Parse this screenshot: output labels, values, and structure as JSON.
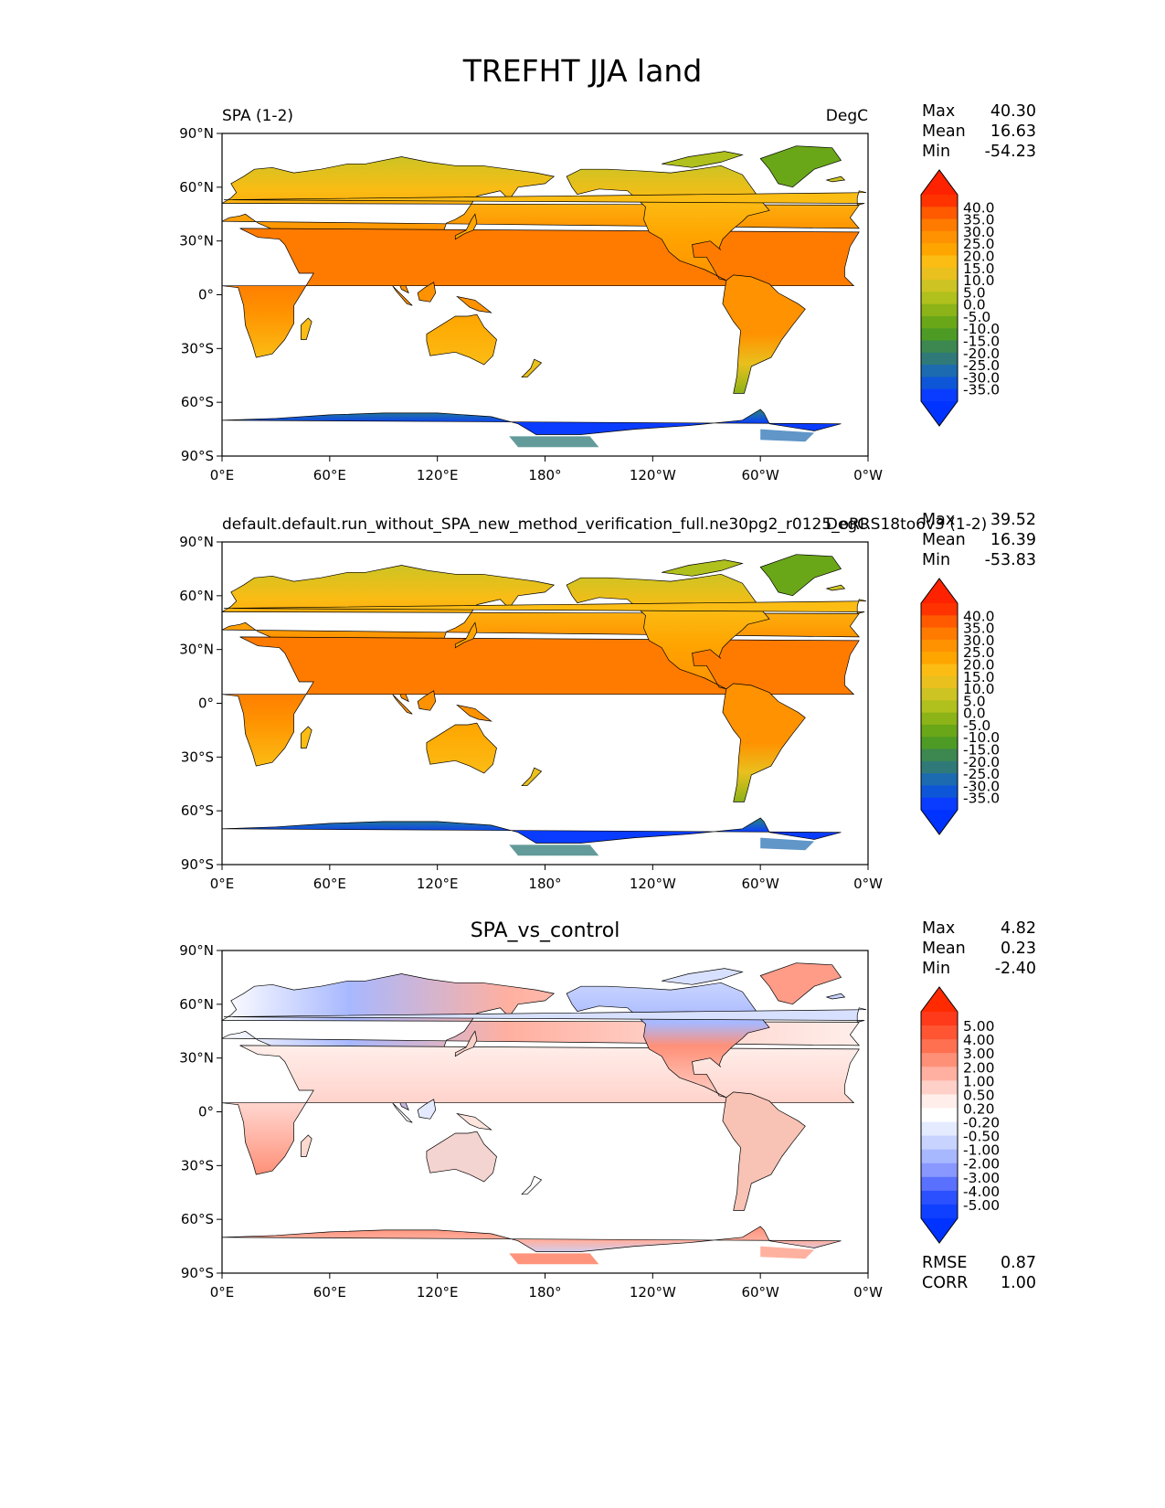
{
  "figure": {
    "title": "TREFHT JJA land"
  },
  "panels": [
    {
      "id": "test",
      "left_title": "SPA (1-2)",
      "center_title": "",
      "right_title": "DegC",
      "stats": [
        {
          "label": "Max",
          "value": "40.30"
        },
        {
          "label": "Mean",
          "value": "16.63"
        },
        {
          "label": "Min",
          "value": "-54.23"
        }
      ],
      "colorbar": {
        "labels": [
          "40.0",
          "35.0",
          "30.0",
          "25.0",
          "20.0",
          "15.0",
          "10.0",
          "5.0",
          "0.0",
          "-5.0",
          "-10.0",
          "-15.0",
          "-20.0",
          "-25.0",
          "-30.0",
          "-35.0"
        ],
        "colors": [
          "#ff3300",
          "#ff5a00",
          "#ff7b00",
          "#ff9200",
          "#ffa500",
          "#fbbc14",
          "#e9c01e",
          "#cdc424",
          "#b0c01c",
          "#8cb318",
          "#6aa718",
          "#4d9b24",
          "#3c8850",
          "#2f7a78",
          "#1c6ab0",
          "#0d56d8",
          "#0a3cff"
        ],
        "ext_top": "#ff2200",
        "ext_bottom": "#0033ff"
      }
    },
    {
      "id": "reference",
      "left_title": "default.default.run_without_SPA_new_method_verification_full.ne30pg2_r0125_oRRS18to6v3 (1-2)",
      "center_title": "",
      "right_title": "DegC",
      "stats": [
        {
          "label": "Max",
          "value": "39.52"
        },
        {
          "label": "Mean",
          "value": "16.39"
        },
        {
          "label": "Min",
          "value": "-53.83"
        }
      ],
      "colorbar": {
        "labels": [
          "40.0",
          "35.0",
          "30.0",
          "25.0",
          "20.0",
          "15.0",
          "10.0",
          "5.0",
          "0.0",
          "-5.0",
          "-10.0",
          "-15.0",
          "-20.0",
          "-25.0",
          "-30.0",
          "-35.0"
        ],
        "colors": [
          "#ff3300",
          "#ff5a00",
          "#ff7b00",
          "#ff9200",
          "#ffa500",
          "#fbbc14",
          "#e9c01e",
          "#cdc424",
          "#b0c01c",
          "#8cb318",
          "#6aa718",
          "#4d9b24",
          "#3c8850",
          "#2f7a78",
          "#1c6ab0",
          "#0d56d8",
          "#0a3cff"
        ],
        "ext_top": "#ff2200",
        "ext_bottom": "#0033ff"
      }
    },
    {
      "id": "diff",
      "left_title": "",
      "center_title": "SPA_vs_control",
      "right_title": "",
      "stats": [
        {
          "label": "Max",
          "value": "4.82"
        },
        {
          "label": "Mean",
          "value": "0.23"
        },
        {
          "label": "Min",
          "value": "-2.40"
        }
      ],
      "bottom_stats": [
        {
          "label": "RMSE",
          "value": "0.87"
        },
        {
          "label": "CORR",
          "value": "1.00"
        }
      ],
      "colorbar": {
        "labels": [
          "5.00",
          "4.00",
          "3.00",
          "2.00",
          "1.00",
          "0.50",
          "0.20",
          "-0.20",
          "-0.50",
          "-1.00",
          "-2.00",
          "-3.00",
          "-4.00",
          "-5.00"
        ],
        "colors": [
          "#ff3a1a",
          "#ff5533",
          "#ff7050",
          "#ff9078",
          "#ffb0a0",
          "#ffd0c8",
          "#ffeeea",
          "#ffffff",
          "#e4ebff",
          "#c8d4ff",
          "#a8b8ff",
          "#8898ff",
          "#5a70ff",
          "#2a50ff",
          "#1040ff"
        ],
        "ext_top": "#ff2a00",
        "ext_bottom": "#0033ff"
      }
    }
  ],
  "axes": {
    "x_ticks": [
      "0°E",
      "60°E",
      "120°E",
      "180°",
      "120°W",
      "60°W",
      "0°W"
    ],
    "y_ticks": [
      "90°N",
      "60°N",
      "30°N",
      "0°",
      "30°S",
      "60°S",
      "90°S"
    ]
  },
  "chart_data": {
    "type": "heatmap",
    "projection": "PlateCarree, central_longitude=180",
    "lon_range": [
      0,
      360
    ],
    "lat_range": [
      -90,
      90
    ],
    "variable": "TREFHT",
    "season": "JJA",
    "region": "land",
    "units": "DegC"
  }
}
